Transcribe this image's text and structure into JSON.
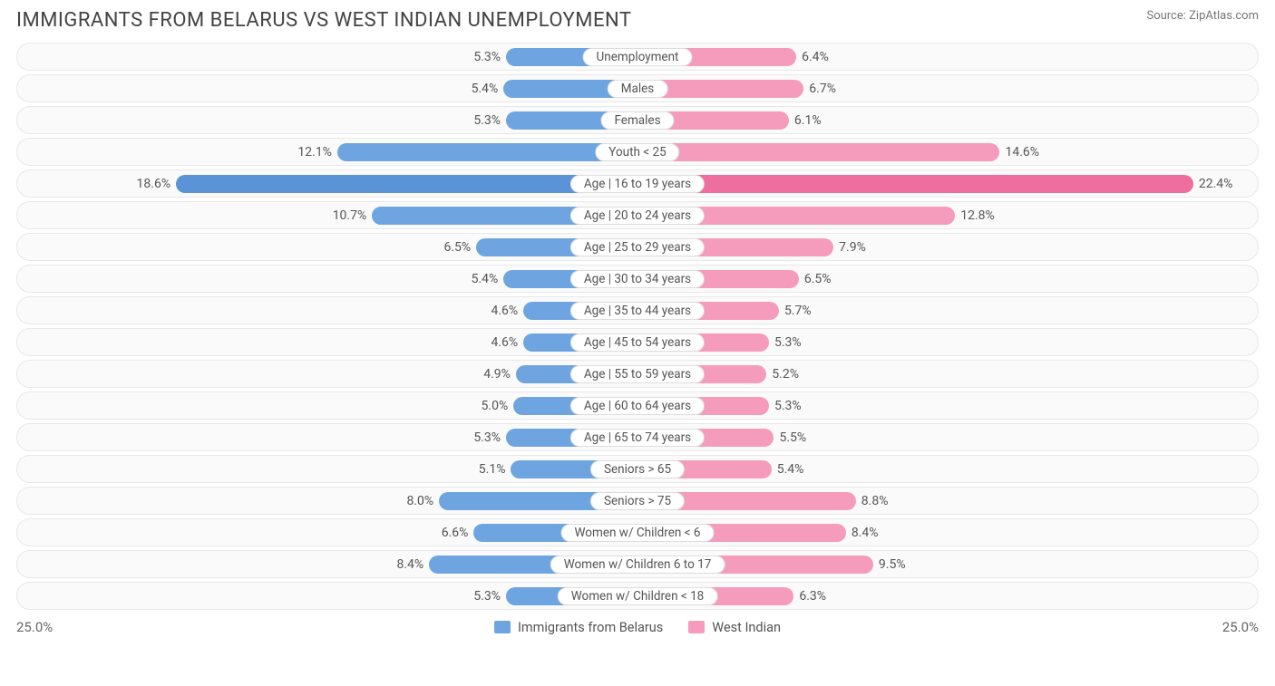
{
  "title": "IMMIGRANTS FROM BELARUS VS WEST INDIAN UNEMPLOYMENT",
  "source": "Source: ZipAtlas.com",
  "axis_max": 25.0,
  "axis_label_left": "25.0%",
  "axis_label_right": "25.0%",
  "series": {
    "left": {
      "label": "Immigrants from Belarus",
      "color": "#6ea5e0",
      "highlight": "#5a93d6"
    },
    "right": {
      "label": "West Indian",
      "color": "#f59cbc",
      "highlight": "#ee6ea0"
    }
  },
  "track": {
    "bg": "#fafafa",
    "border": "#e8e8e8",
    "radius": 15
  },
  "pill": {
    "bg": "#ffffff",
    "border": "#dddddd"
  },
  "text_colors": {
    "title": "#444444",
    "value": "#555555",
    "axis": "#666666",
    "source": "#777777"
  },
  "rows": [
    {
      "cat": "Unemployment",
      "l": 5.3,
      "r": 6.4,
      "hl": false
    },
    {
      "cat": "Males",
      "l": 5.4,
      "r": 6.7,
      "hl": false
    },
    {
      "cat": "Females",
      "l": 5.3,
      "r": 6.1,
      "hl": false
    },
    {
      "cat": "Youth < 25",
      "l": 12.1,
      "r": 14.6,
      "hl": false
    },
    {
      "cat": "Age | 16 to 19 years",
      "l": 18.6,
      "r": 22.4,
      "hl": true
    },
    {
      "cat": "Age | 20 to 24 years",
      "l": 10.7,
      "r": 12.8,
      "hl": false
    },
    {
      "cat": "Age | 25 to 29 years",
      "l": 6.5,
      "r": 7.9,
      "hl": false
    },
    {
      "cat": "Age | 30 to 34 years",
      "l": 5.4,
      "r": 6.5,
      "hl": false
    },
    {
      "cat": "Age | 35 to 44 years",
      "l": 4.6,
      "r": 5.7,
      "hl": false
    },
    {
      "cat": "Age | 45 to 54 years",
      "l": 4.6,
      "r": 5.3,
      "hl": false
    },
    {
      "cat": "Age | 55 to 59 years",
      "l": 4.9,
      "r": 5.2,
      "hl": false
    },
    {
      "cat": "Age | 60 to 64 years",
      "l": 5.0,
      "r": 5.3,
      "hl": false
    },
    {
      "cat": "Age | 65 to 74 years",
      "l": 5.3,
      "r": 5.5,
      "hl": false
    },
    {
      "cat": "Seniors > 65",
      "l": 5.1,
      "r": 5.4,
      "hl": false
    },
    {
      "cat": "Seniors > 75",
      "l": 8.0,
      "r": 8.8,
      "hl": false
    },
    {
      "cat": "Women w/ Children < 6",
      "l": 6.6,
      "r": 8.4,
      "hl": false
    },
    {
      "cat": "Women w/ Children 6 to 17",
      "l": 8.4,
      "r": 9.5,
      "hl": false
    },
    {
      "cat": "Women w/ Children < 18",
      "l": 5.3,
      "r": 6.3,
      "hl": false
    }
  ]
}
